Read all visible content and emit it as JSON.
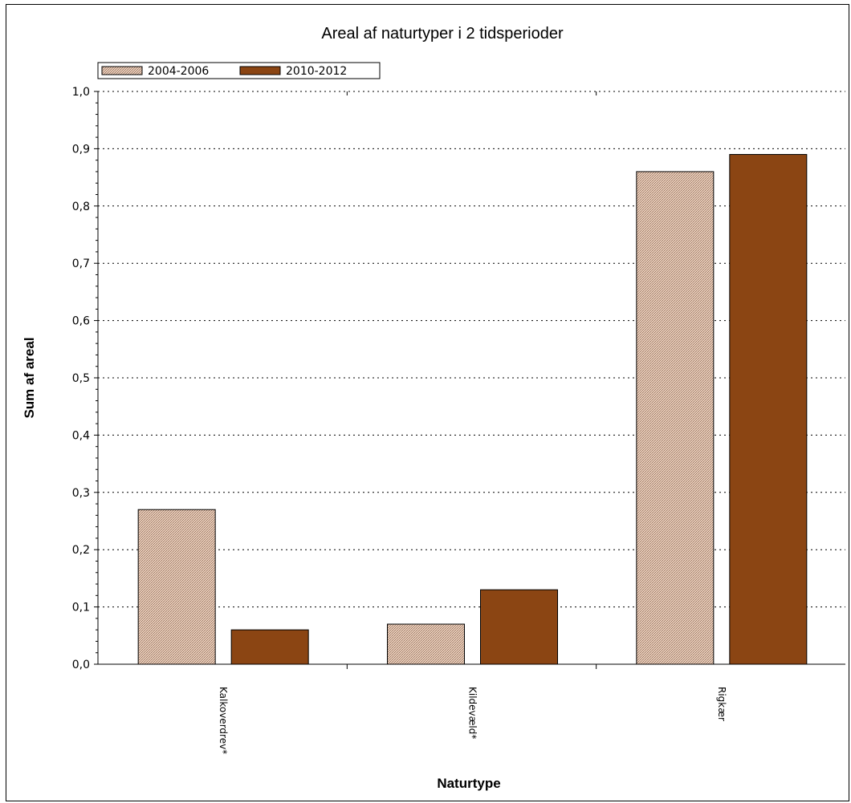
{
  "chart_data": {
    "type": "bar",
    "title": "Areal af naturtyper i 2 tidsperioder",
    "xlabel": "Naturtype",
    "ylabel": "Sum af areal",
    "categories": [
      "Kalkoverdrev*",
      "Kildevæld*",
      "Rigkær"
    ],
    "series": [
      {
        "name": "2004-2006",
        "values": [
          0.27,
          0.07,
          0.86
        ],
        "color": "#d8b9a4",
        "pattern": "stipple"
      },
      {
        "name": "2010-2012",
        "values": [
          0.06,
          0.13,
          0.89
        ],
        "color": "#8b4513",
        "pattern": "solid"
      }
    ],
    "yticks": [
      "0,0",
      "0,1",
      "0,2",
      "0,3",
      "0,4",
      "0,5",
      "0,6",
      "0,7",
      "0,8",
      "0,9",
      "1,0"
    ],
    "ylim": [
      0,
      1.0
    ],
    "grid": "horizontal-dotted",
    "legend_position": "top-left"
  }
}
